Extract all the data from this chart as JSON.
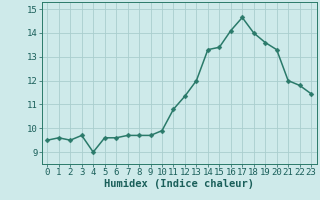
{
  "x": [
    0,
    1,
    2,
    3,
    4,
    5,
    6,
    7,
    8,
    9,
    10,
    11,
    12,
    13,
    14,
    15,
    16,
    17,
    18,
    19,
    20,
    21,
    22,
    23
  ],
  "y": [
    9.5,
    9.6,
    9.5,
    9.7,
    9.0,
    9.6,
    9.6,
    9.7,
    9.7,
    9.7,
    9.9,
    10.8,
    11.35,
    12.0,
    13.3,
    13.4,
    14.1,
    14.65,
    14.0,
    13.6,
    13.3,
    12.0,
    11.8,
    11.45
  ],
  "line_color": "#2a7a6a",
  "marker": "D",
  "marker_size": 2.5,
  "bg_color": "#ceeaea",
  "grid_color": "#aacece",
  "xlabel": "Humidex (Indice chaleur)",
  "xlim": [
    -0.5,
    23.5
  ],
  "ylim": [
    8.5,
    15.3
  ],
  "yticks": [
    9,
    10,
    11,
    12,
    13,
    14,
    15
  ],
  "xticks": [
    0,
    1,
    2,
    3,
    4,
    5,
    6,
    7,
    8,
    9,
    10,
    11,
    12,
    13,
    14,
    15,
    16,
    17,
    18,
    19,
    20,
    21,
    22,
    23
  ],
  "tick_label_color": "#1a5f5a",
  "axis_color": "#2a7a6a",
  "font_size_label": 7.5,
  "font_size_tick": 6.5,
  "linewidth": 1.1
}
